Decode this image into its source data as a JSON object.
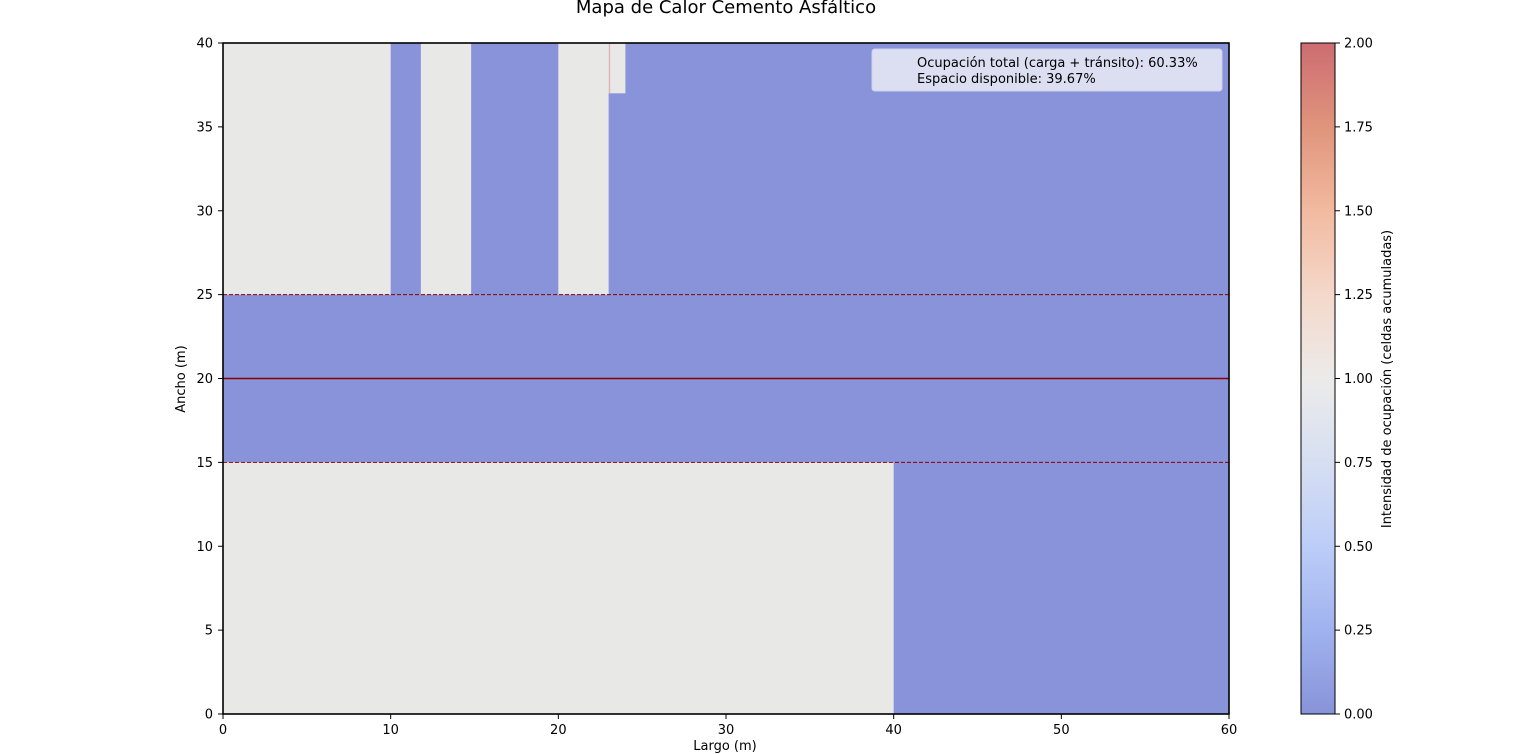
{
  "chart_data": {
    "type": "heatmap",
    "title": "Mapa de Calor Cemento Asfáltico",
    "xlabel": "Largo (m)",
    "ylabel": "Ancho (m)",
    "xlim": [
      0,
      60
    ],
    "ylim": [
      0,
      40
    ],
    "xticks": [
      "0",
      "10",
      "20",
      "30",
      "40",
      "50",
      "60"
    ],
    "yticks": [
      "0",
      "5",
      "10",
      "15",
      "20",
      "25",
      "30",
      "35",
      "40"
    ],
    "grid": false,
    "background_value": 0,
    "occupied_regions": [
      {
        "x": [
          0,
          40
        ],
        "y": [
          0,
          15
        ],
        "value": 1
      },
      {
        "x": [
          0,
          10
        ],
        "y": [
          25,
          40
        ],
        "value": 1
      },
      {
        "x": [
          11.8,
          14.8
        ],
        "y": [
          25,
          40
        ],
        "value": 1
      },
      {
        "x": [
          20,
          23
        ],
        "y": [
          25,
          40
        ],
        "value": 1
      },
      {
        "x": [
          23,
          24
        ],
        "y": [
          37,
          40
        ],
        "value": 1
      }
    ],
    "reference_lines": [
      {
        "y": 15,
        "style": "dashed",
        "color": "#8b0000"
      },
      {
        "y": 20,
        "style": "solid",
        "color": "#8b0000"
      },
      {
        "y": 25,
        "style": "dashed",
        "color": "#8b0000"
      }
    ],
    "legend": {
      "placement": "top-right",
      "entries": [
        "Ocupación total (carga + tránsito): 60.33%",
        "Espacio disponible: 39.67%"
      ]
    },
    "colorbar": {
      "label": "Intensidad de ocupación (celdas acumuladas)",
      "range": [
        0,
        2
      ],
      "colormap": "coolwarm",
      "ticks": [
        "0.00",
        "0.25",
        "0.50",
        "0.75",
        "1.00",
        "1.25",
        "1.50",
        "1.75",
        "2.00"
      ]
    },
    "colors": {
      "low": "#8893d9",
      "mid": "#e8e8e6",
      "line": "#8b0000"
    }
  }
}
